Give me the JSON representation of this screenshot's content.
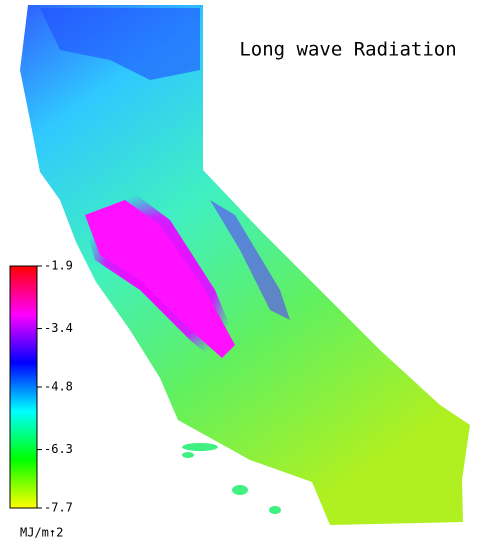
{
  "map": {
    "title": "Long wave Radiation",
    "colorbar": {
      "lim": [
        -7.7,
        -1.9
      ],
      "ticks": [
        -1.9,
        -3.4,
        -4.8,
        -6.3,
        -7.7
      ],
      "label": "MJ/m↑2",
      "colors": [
        "#ffff00",
        "#00ff00",
        "#00ffff",
        "#0000ff",
        "#ff00ff",
        "#ff0000"
      ]
    }
  }
}
